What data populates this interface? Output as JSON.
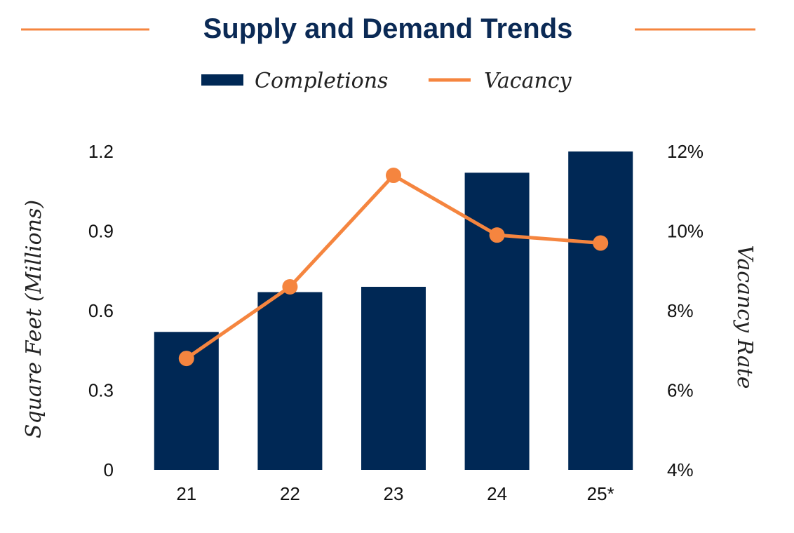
{
  "chart_data": {
    "type": "bar+line",
    "title": "Supply and Demand Trends",
    "categories": [
      "21",
      "22",
      "23",
      "24",
      "25*"
    ],
    "series": [
      {
        "name": "Completions",
        "type": "bar",
        "axis": "left",
        "values": [
          0.52,
          0.67,
          0.69,
          1.12,
          1.2
        ]
      },
      {
        "name": "Vacancy",
        "type": "line",
        "axis": "right",
        "values": [
          6.8,
          8.6,
          11.4,
          9.9,
          9.7
        ]
      }
    ],
    "ylabel": "Square Feet (Millions)",
    "y2label": "Vacancy Rate",
    "ylim": [
      0,
      1.2
    ],
    "y2lim": [
      4,
      12
    ],
    "yticks": [
      "0",
      "0.3",
      "0.6",
      "0.9",
      "1.2"
    ],
    "y2ticks": [
      "4%",
      "6%",
      "8%",
      "10%",
      "12%"
    ],
    "legend_position": "top-center",
    "grid": false,
    "colors": {
      "completions": "#002855",
      "vacancy": "#f5853f",
      "title": "#0b2a55",
      "rule": "#f5853f"
    }
  }
}
